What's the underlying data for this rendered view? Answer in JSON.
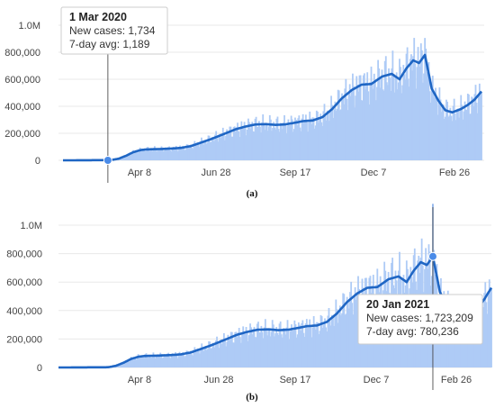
{
  "colors": {
    "bar": "#aecbf6",
    "bar_highlight": "#8fb4ec",
    "line": "#1f66c4",
    "marker": "#4a8be8",
    "crosshair": "#606060",
    "grid": "#e8e8e8",
    "tooltip_border": "#cccccc"
  },
  "chart_data": [
    {
      "type": "bar",
      "caption": "(a)",
      "x_dates": [
        "2020-01-15",
        "2020-01-25",
        "2020-02-04",
        "2020-02-14",
        "2020-02-24",
        "2020-03-01",
        "2020-03-05",
        "2020-03-12",
        "2020-03-20",
        "2020-03-27",
        "2020-04-03",
        "2020-04-08",
        "2020-04-15",
        "2020-04-25",
        "2020-05-05",
        "2020-05-15",
        "2020-05-25",
        "2020-06-04",
        "2020-06-14",
        "2020-06-28",
        "2020-07-10",
        "2020-07-20",
        "2020-07-30",
        "2020-08-10",
        "2020-08-20",
        "2020-08-30",
        "2020-09-10",
        "2020-09-17",
        "2020-09-27",
        "2020-10-07",
        "2020-10-17",
        "2020-10-27",
        "2020-11-06",
        "2020-11-16",
        "2020-11-26",
        "2020-12-07",
        "2020-12-17",
        "2020-12-25",
        "2021-01-01",
        "2021-01-08",
        "2021-01-14",
        "2021-01-20",
        "2021-01-27",
        "2021-02-03",
        "2021-02-10",
        "2021-02-17",
        "2021-02-26",
        "2021-03-05",
        "2021-03-12",
        "2021-03-19"
      ],
      "new_cases": [
        200,
        400,
        800,
        1300,
        1500,
        1734,
        3000,
        15000,
        40000,
        65000,
        78000,
        82000,
        84000,
        86000,
        90000,
        95000,
        110000,
        135000,
        160000,
        200000,
        235000,
        255000,
        270000,
        275000,
        265000,
        270000,
        285000,
        295000,
        300000,
        330000,
        400000,
        480000,
        540000,
        580000,
        570000,
        650000,
        660000,
        620000,
        700000,
        760000,
        820000,
        1100000,
        560000,
        480000,
        390000,
        360000,
        390000,
        420000,
        480000,
        560000
      ],
      "avg_7day": [
        50,
        200,
        600,
        1000,
        1100,
        1189,
        2500,
        12000,
        35000,
        60000,
        75000,
        80000,
        82000,
        84000,
        87000,
        92000,
        105000,
        130000,
        155000,
        195000,
        230000,
        250000,
        265000,
        268000,
        262000,
        266000,
        280000,
        290000,
        295000,
        320000,
        380000,
        460000,
        520000,
        560000,
        565000,
        620000,
        640000,
        600000,
        680000,
        740000,
        720000,
        780236,
        530000,
        440000,
        370000,
        355000,
        380000,
        410000,
        450000,
        510000
      ],
      "x_ticks": [
        "Apr 8",
        "Jun 28",
        "Sep 17",
        "Dec 7",
        "Feb 26"
      ],
      "y_ticks": [
        "0",
        "200,000",
        "400,000",
        "600,000",
        "800,000",
        "1.0M"
      ],
      "ylim": [
        0,
        1000000
      ],
      "tooltip": {
        "date": "1 Mar 2020",
        "new_cases": "New cases: 1,734",
        "avg": "7-day avg: 1,189",
        "point_index": 5
      }
    },
    {
      "type": "bar",
      "caption": "(b)",
      "x_dates": [
        "2020-01-15",
        "2020-01-25",
        "2020-02-04",
        "2020-02-14",
        "2020-02-24",
        "2020-03-01",
        "2020-03-05",
        "2020-03-12",
        "2020-03-20",
        "2020-03-27",
        "2020-04-03",
        "2020-04-08",
        "2020-04-15",
        "2020-04-25",
        "2020-05-05",
        "2020-05-15",
        "2020-05-25",
        "2020-06-04",
        "2020-06-14",
        "2020-06-28",
        "2020-07-10",
        "2020-07-20",
        "2020-07-30",
        "2020-08-10",
        "2020-08-20",
        "2020-08-30",
        "2020-09-10",
        "2020-09-17",
        "2020-09-27",
        "2020-10-07",
        "2020-10-17",
        "2020-10-27",
        "2020-11-06",
        "2020-11-16",
        "2020-11-26",
        "2020-12-07",
        "2020-12-17",
        "2020-12-25",
        "2021-01-01",
        "2021-01-08",
        "2021-01-14",
        "2021-01-20",
        "2021-01-27",
        "2021-02-03",
        "2021-02-10",
        "2021-02-17",
        "2021-02-26",
        "2021-03-05",
        "2021-03-12",
        "2021-03-19"
      ],
      "new_cases": [
        200,
        400,
        800,
        1300,
        1500,
        1734,
        3000,
        15000,
        40000,
        65000,
        78000,
        82000,
        84000,
        86000,
        90000,
        95000,
        110000,
        135000,
        160000,
        200000,
        235000,
        255000,
        270000,
        275000,
        265000,
        270000,
        285000,
        295000,
        300000,
        330000,
        400000,
        480000,
        540000,
        580000,
        570000,
        650000,
        660000,
        620000,
        700000,
        760000,
        820000,
        1723209,
        560000,
        480000,
        390000,
        360000,
        390000,
        420000,
        520000,
        600000
      ],
      "avg_7day": [
        50,
        200,
        600,
        1000,
        1100,
        1189,
        2500,
        12000,
        35000,
        60000,
        75000,
        80000,
        82000,
        84000,
        87000,
        92000,
        105000,
        130000,
        155000,
        195000,
        230000,
        250000,
        265000,
        268000,
        262000,
        266000,
        280000,
        290000,
        295000,
        320000,
        380000,
        460000,
        520000,
        560000,
        565000,
        620000,
        640000,
        600000,
        680000,
        740000,
        720000,
        780236,
        530000,
        440000,
        370000,
        355000,
        380000,
        410000,
        480000,
        560000
      ],
      "x_ticks": [
        "Apr 8",
        "Jun 28",
        "Sep 17",
        "Dec 7",
        "Feb 26"
      ],
      "y_ticks": [
        "0",
        "200,000",
        "400,000",
        "600,000",
        "800,000",
        "1.0M"
      ],
      "ylim": [
        0,
        1000000
      ],
      "tooltip": {
        "date": "20 Jan 2021",
        "new_cases": "New cases: 1,723,209",
        "avg": "7-day avg: 780,236",
        "point_index": 41
      }
    }
  ]
}
